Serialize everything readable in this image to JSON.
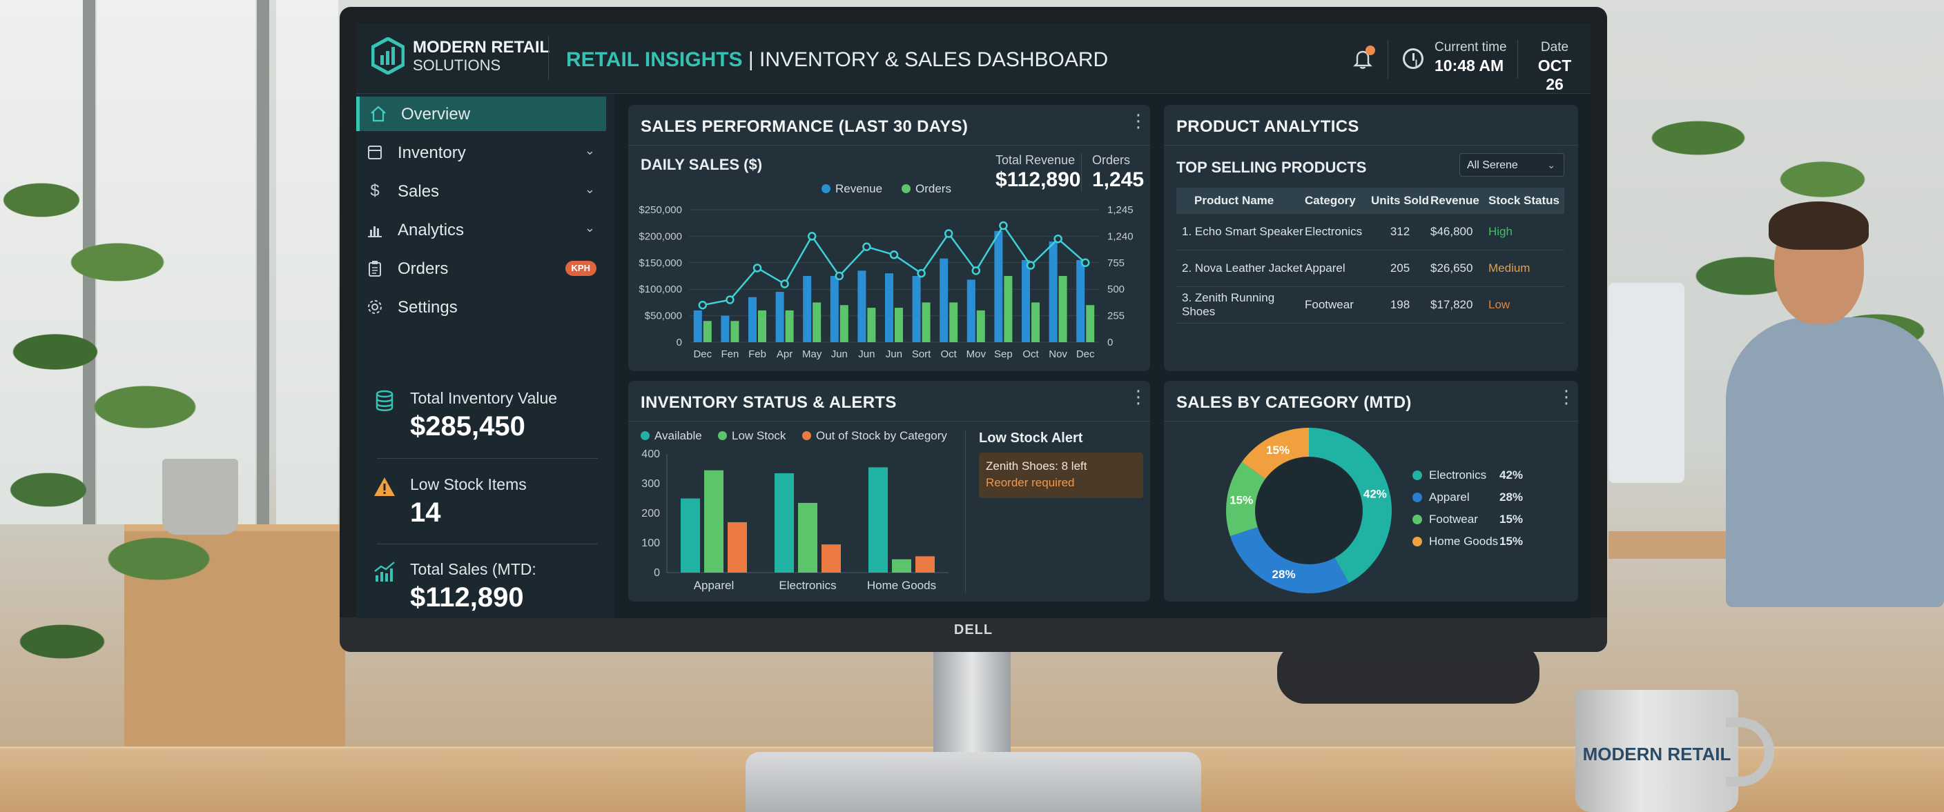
{
  "brand": {
    "name": "MODERN RETAIL",
    "sub": "SOLUTIONS",
    "monitor_brand": "DELL",
    "mug_text": "MODERN RETAIL"
  },
  "header": {
    "title_accent": "RETAIL INSIGHTS",
    "title_rest": " | INVENTORY & SALES DASHBOARD",
    "time_label": "Current time",
    "time_value": "10:48 AM",
    "date_label": "Date",
    "date_value": "OCT 26"
  },
  "sidebar": {
    "items": [
      {
        "label": "Overview",
        "icon": "home-icon",
        "active": true
      },
      {
        "label": "Inventory",
        "icon": "inventory-icon",
        "chevron": true
      },
      {
        "label": "Sales",
        "icon": "dollar-icon",
        "chevron": true
      },
      {
        "label": "Analytics",
        "icon": "bar-chart-icon",
        "chevron": true
      },
      {
        "label": "Orders",
        "icon": "clipboard-icon",
        "badge": "KPH"
      },
      {
        "label": "Settings",
        "icon": "gear-icon"
      }
    ],
    "kpis": [
      {
        "label": "Total Inventory Value",
        "value": "$285,450",
        "icon": "database-icon"
      },
      {
        "label": "Low Stock Items",
        "value": "14",
        "icon": "warning-icon"
      },
      {
        "label": "Total Sales (MTD:",
        "value": "$112,890",
        "icon": "trend-chart-icon"
      }
    ]
  },
  "sales_panel": {
    "title": "SALES PERFORMANCE (LAST 30 DAYS)",
    "subtitle": "DAILY SALES ($)",
    "total_revenue_label": "Total Revenue",
    "total_revenue_value": "$112,890",
    "orders_label": "Orders",
    "orders_value": "1,245"
  },
  "product_panel": {
    "title": "PRODUCT ANALYTICS",
    "subtitle": "TOP SELLING PRODUCTS",
    "filter_value": "All Serene",
    "columns": [
      "Product Name",
      "Category",
      "Units Sold",
      "Revenue",
      "Stock Status"
    ],
    "rows": [
      {
        "name": "1. Echo Smart Speaker",
        "category": "Electronics",
        "units": "312",
        "revenue": "$46,800",
        "status": "High",
        "status_color": "#3fbf6a"
      },
      {
        "name": "2. Nova Leather Jacket",
        "category": "Apparel",
        "units": "205",
        "revenue": "$26,650",
        "status": "Medium",
        "status_color": "#e0a04a"
      },
      {
        "name": "3. Zenith Running Shoes",
        "category": "Footwear",
        "units": "198",
        "revenue": "$17,820",
        "status": "Low",
        "status_color": "#e0843f"
      }
    ]
  },
  "inventory_panel": {
    "title": "INVENTORY STATUS & ALERTS",
    "alert_title": "Low Stock Alert",
    "alert_line1": "Zenith Shoes: 8 left",
    "alert_line2": "Reorder required"
  },
  "category_panel": {
    "title": "SALES BY CATEGORY (MTD)"
  },
  "colors": {
    "teal": "#20b3a4",
    "blue": "#2b8fd6",
    "green": "#5cc46a",
    "orange": "#ee7a43"
  },
  "chart_data": [
    {
      "type": "bar",
      "name": "daily-sales",
      "categories": [
        "Dec",
        "Fen",
        "Feb",
        "Apr",
        "May",
        "Jun",
        "Jun",
        "Jun",
        "Sort",
        "Oct",
        "Mov",
        "Sep",
        "Oct",
        "Nov",
        "Dec"
      ],
      "series": [
        {
          "name": "Revenue",
          "kind": "bar",
          "color": "#2b8fd6",
          "values": [
            60000,
            50000,
            85000,
            95000,
            125000,
            125000,
            135000,
            130000,
            125000,
            158000,
            118000,
            210000,
            155000,
            190000,
            155000
          ]
        },
        {
          "name": "Orders",
          "kind": "bar",
          "color": "#5cc46a",
          "values": [
            40000,
            40000,
            60000,
            60000,
            75000,
            70000,
            65000,
            65000,
            75000,
            75000,
            60000,
            125000,
            75000,
            125000,
            70000
          ]
        },
        {
          "name": "Revenue trend",
          "kind": "line",
          "color": "#3fd0d8",
          "values": [
            70000,
            80000,
            140000,
            110000,
            200000,
            125000,
            180000,
            165000,
            130000,
            205000,
            135000,
            220000,
            145000,
            195000,
            150000
          ]
        }
      ],
      "y_left_ticks": [
        "$250,000",
        "$200,000",
        "$150,000",
        "$100,000",
        "$50,000",
        "0"
      ],
      "y_right_ticks": [
        "1,245",
        "1,240",
        "755",
        "500",
        "255",
        "0"
      ],
      "ylim": [
        0,
        250000
      ]
    },
    {
      "type": "bar",
      "name": "inventory-status",
      "categories": [
        "Apparel",
        "Electronics",
        "Home Goods"
      ],
      "series": [
        {
          "name": "Available",
          "color": "#20b3a4",
          "values": [
            250,
            335,
            355
          ]
        },
        {
          "name": "Low Stock",
          "color": "#5cc46a",
          "values": [
            345,
            235,
            45
          ]
        },
        {
          "name": "Out of Stock by Category",
          "color": "#ee7a43",
          "values": [
            170,
            95,
            55
          ]
        }
      ],
      "y_ticks": [
        "400",
        "300",
        "200",
        "100",
        "0"
      ],
      "ylim": [
        0,
        400
      ]
    },
    {
      "type": "pie",
      "name": "sales-by-category",
      "donut": true,
      "slices": [
        {
          "label": "Electronics",
          "value": 42,
          "text": "42%",
          "color": "#20b3a4"
        },
        {
          "label": "Apparel",
          "value": 28,
          "text": "28%",
          "color": "#2b7fd0"
        },
        {
          "label": "Footwear",
          "value": 15,
          "text": "15%",
          "color": "#5cc46a"
        },
        {
          "label": "Home Goods",
          "value": 15,
          "text": "15%",
          "color": "#f0a03f"
        }
      ]
    }
  ]
}
